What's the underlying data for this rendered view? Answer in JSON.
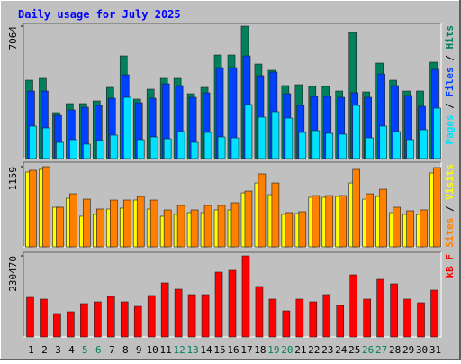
{
  "chart_data": [
    {
      "type": "bar",
      "title": "Daily usage for July 2025",
      "ylim": [
        0,
        7064
      ],
      "yticks": [
        7064
      ],
      "legend_separator": "/",
      "series": [
        {
          "name": "Hits",
          "color": "#00805c",
          "values": [
            4180,
            4277,
            2451,
            2931,
            2931,
            3075,
            3796,
            5478,
            3171,
            3700,
            4277,
            4277,
            3460,
            3796,
            5526,
            5526,
            7064,
            5045,
            4709,
            3892,
            3940,
            3844,
            3844,
            3604,
            6727,
            3556,
            5093,
            4180,
            3604,
            3604,
            5141
          ]
        },
        {
          "name": "Files",
          "color": "#0040ff",
          "values": [
            3604,
            3604,
            2306,
            2595,
            2739,
            2835,
            3219,
            4469,
            2979,
            3219,
            3988,
            3892,
            3267,
            3508,
            4853,
            4853,
            5478,
            4421,
            4613,
            3460,
            2835,
            3316,
            3316,
            3267,
            3508,
            3267,
            4517,
            3892,
            3364,
            2787,
            4757
          ]
        },
        {
          "name": "Pages",
          "color": "#00e0ff",
          "values": [
            1730,
            1634,
            865,
            1009,
            769,
            961,
            1249,
            3267,
            1009,
            1153,
            1057,
            1442,
            865,
            1393,
            1153,
            1105,
            2883,
            2210,
            2499,
            2162,
            1393,
            1490,
            1345,
            1297,
            2835,
            1105,
            1730,
            1442,
            1009,
            1538,
            2691
          ]
        }
      ]
    },
    {
      "type": "bar",
      "ylim": [
        0,
        1159
      ],
      "yticks": [
        1159
      ],
      "legend_separator": "/",
      "series": [
        {
          "name": "Visits",
          "color": "#ffff00",
          "values": [
            1081,
            1120,
            573,
            703,
            443,
            469,
            547,
            560,
            677,
            547,
            443,
            469,
            495,
            495,
            534,
            534,
            781,
            924,
            755,
            469,
            482,
            716,
            716,
            729,
            924,
            690,
            729,
            495,
            469,
            469,
            1068
          ]
        },
        {
          "name": "Sites",
          "color": "#ff8000",
          "values": [
            1107,
            1159,
            573,
            768,
            690,
            547,
            677,
            677,
            729,
            677,
            534,
            599,
            534,
            599,
            599,
            638,
            807,
            1055,
            924,
            495,
            508,
            742,
            742,
            742,
            1120,
            768,
            833,
            573,
            521,
            534,
            1146
          ]
        }
      ]
    },
    {
      "type": "bar",
      "ylim": [
        0,
        230470
      ],
      "yticks": [
        230470
      ],
      "categories": [
        1,
        2,
        3,
        4,
        5,
        6,
        7,
        8,
        9,
        10,
        11,
        12,
        13,
        14,
        15,
        16,
        17,
        18,
        19,
        20,
        21,
        22,
        23,
        24,
        25,
        26,
        27,
        28,
        29,
        30,
        31
      ],
      "category_colors": [
        "#000000",
        "#000000",
        "#000000",
        "#000000",
        "#00805c",
        "#00805c",
        "#000000",
        "#000000",
        "#000000",
        "#000000",
        "#000000",
        "#00805c",
        "#00805c",
        "#000000",
        "#000000",
        "#000000",
        "#000000",
        "#000000",
        "#00805c",
        "#00805c",
        "#000000",
        "#000000",
        "#000000",
        "#000000",
        "#000000",
        "#00805c",
        "#00805c",
        "#000000",
        "#000000",
        "#000000",
        "#000000"
      ],
      "series": [
        {
          "name": "kB F",
          "color": "#ff0000",
          "values": [
            112684,
            107562,
            66586,
            71708,
            94757,
            99879,
            115245,
            99879,
            87074,
            117806,
            153660,
            135733,
            120367,
            120367,
            184392,
            189514,
            230470,
            143416,
            107562,
            74269,
            107562,
            99879,
            120367,
            89635,
            176709,
            107562,
            163904,
            151099,
            107562,
            97318,
            133172
          ]
        }
      ]
    }
  ]
}
